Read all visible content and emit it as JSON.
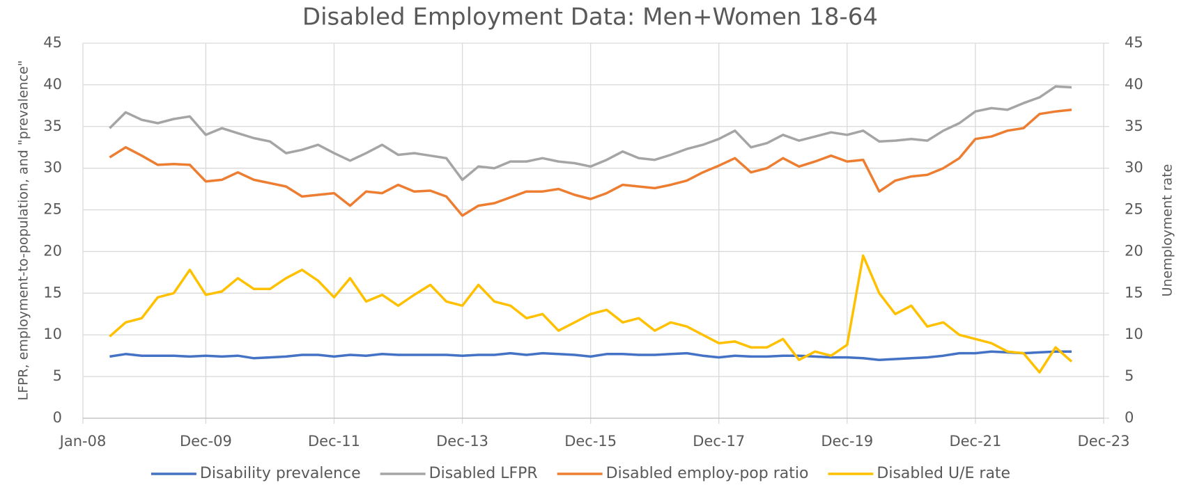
{
  "chart_data": {
    "type": "line",
    "title": "Disabled Employment Data: Men+Women 18-64",
    "y_label": "LFPR, employment-to-population, and \"prevalence\"",
    "y2_label": "Unemployment rate",
    "x": [
      "2008-06",
      "2008-09",
      "2008-12",
      "2009-03",
      "2009-06",
      "2009-09",
      "2009-12",
      "2010-03",
      "2010-06",
      "2010-09",
      "2010-12",
      "2011-03",
      "2011-06",
      "2011-09",
      "2011-12",
      "2012-03",
      "2012-06",
      "2012-09",
      "2012-12",
      "2013-03",
      "2013-06",
      "2013-09",
      "2013-12",
      "2014-03",
      "2014-06",
      "2014-09",
      "2014-12",
      "2015-03",
      "2015-06",
      "2015-09",
      "2015-12",
      "2016-03",
      "2016-06",
      "2016-09",
      "2016-12",
      "2017-03",
      "2017-06",
      "2017-09",
      "2017-12",
      "2018-03",
      "2018-06",
      "2018-09",
      "2018-12",
      "2019-03",
      "2019-06",
      "2019-09",
      "2019-12",
      "2020-03",
      "2020-06",
      "2020-09",
      "2020-12",
      "2021-03",
      "2021-06",
      "2021-09",
      "2021-12",
      "2022-03",
      "2022-06",
      "2022-09",
      "2022-12",
      "2023-03",
      "2023-06"
    ],
    "series": [
      {
        "name": "Disability prevalence",
        "color": "#4472c4",
        "values": [
          7.4,
          7.7,
          7.5,
          7.5,
          7.5,
          7.4,
          7.5,
          7.4,
          7.5,
          7.2,
          7.3,
          7.4,
          7.6,
          7.6,
          7.4,
          7.6,
          7.5,
          7.7,
          7.6,
          7.6,
          7.6,
          7.6,
          7.5,
          7.6,
          7.6,
          7.8,
          7.6,
          7.8,
          7.7,
          7.6,
          7.4,
          7.7,
          7.7,
          7.6,
          7.6,
          7.7,
          7.8,
          7.5,
          7.3,
          7.5,
          7.4,
          7.4,
          7.5,
          7.5,
          7.4,
          7.3,
          7.3,
          7.2,
          7.0,
          7.1,
          7.2,
          7.3,
          7.5,
          7.8,
          7.8,
          8.0,
          7.9,
          7.8,
          7.9,
          8.0,
          8.0
        ]
      },
      {
        "name": "Disabled LFPR",
        "color": "#a5a5a5",
        "values": [
          34.8,
          36.7,
          35.8,
          35.4,
          35.9,
          36.2,
          34.0,
          34.8,
          34.2,
          33.6,
          33.2,
          31.8,
          32.2,
          32.8,
          31.8,
          30.9,
          31.8,
          32.8,
          31.6,
          31.8,
          31.5,
          31.2,
          28.6,
          30.2,
          30.0,
          30.8,
          30.8,
          31.2,
          30.8,
          30.6,
          30.2,
          31.0,
          32.0,
          31.2,
          31.0,
          31.6,
          32.3,
          32.8,
          33.5,
          34.5,
          32.5,
          33.0,
          34.0,
          33.3,
          33.8,
          34.3,
          34.0,
          34.5,
          33.2,
          33.3,
          33.5,
          33.3,
          34.5,
          35.4,
          36.8,
          37.2,
          37.0,
          37.8,
          38.5,
          39.8,
          39.7
        ]
      },
      {
        "name": "Disabled employ-pop ratio",
        "color": "#ed7d31",
        "values": [
          31.3,
          32.5,
          31.5,
          30.4,
          30.5,
          30.4,
          28.4,
          28.6,
          29.5,
          28.6,
          28.2,
          27.8,
          26.6,
          26.8,
          27.0,
          25.5,
          27.2,
          27.0,
          28.0,
          27.2,
          27.3,
          26.6,
          24.3,
          25.5,
          25.8,
          26.5,
          27.2,
          27.2,
          27.5,
          26.8,
          26.3,
          27.0,
          28.0,
          27.8,
          27.6,
          28.0,
          28.5,
          29.5,
          30.3,
          31.2,
          29.5,
          30.0,
          31.2,
          30.2,
          30.8,
          31.5,
          30.8,
          31.0,
          27.2,
          28.5,
          29.0,
          29.2,
          30.0,
          31.2,
          33.5,
          33.8,
          34.5,
          34.8,
          36.5,
          36.8,
          37.0
        ]
      },
      {
        "name": "Disabled U/E rate",
        "color": "#ffc000",
        "axis": "y2",
        "values": [
          9.8,
          11.5,
          12.0,
          14.5,
          15.0,
          17.8,
          14.8,
          15.2,
          16.8,
          15.5,
          15.5,
          16.8,
          17.8,
          16.5,
          14.5,
          16.8,
          14.0,
          14.8,
          13.5,
          14.8,
          16.0,
          14.0,
          13.5,
          16.0,
          14.0,
          13.5,
          12.0,
          12.5,
          10.5,
          11.5,
          12.5,
          13.0,
          11.5,
          12.0,
          10.5,
          11.5,
          11.0,
          10.0,
          9.0,
          9.2,
          8.5,
          8.5,
          9.5,
          7.0,
          8.0,
          7.5,
          8.8,
          19.5,
          15.0,
          12.5,
          13.5,
          11.0,
          11.5,
          10.0,
          9.5,
          9.0,
          8.0,
          7.8,
          5.5,
          8.5,
          6.8
        ]
      }
    ],
    "xlim": [
      "2008-01",
      "2023-12"
    ],
    "xticks": [
      {
        "value": "2008-01",
        "label": "Jan-08"
      },
      {
        "value": "2009-12",
        "label": "Dec-09"
      },
      {
        "value": "2011-12",
        "label": "Dec-11"
      },
      {
        "value": "2013-12",
        "label": "Dec-13"
      },
      {
        "value": "2015-12",
        "label": "Dec-15"
      },
      {
        "value": "2017-12",
        "label": "Dec-17"
      },
      {
        "value": "2019-12",
        "label": "Dec-19"
      },
      {
        "value": "2021-12",
        "label": "Dec-21"
      },
      {
        "value": "2023-12",
        "label": "Dec-23"
      }
    ],
    "ylim": [
      0,
      45
    ],
    "yticks": [
      0,
      5,
      10,
      15,
      20,
      25,
      30,
      35,
      40,
      45
    ],
    "y2lim": [
      0,
      45
    ],
    "y2ticks": [
      0,
      5,
      10,
      15,
      20,
      25,
      30,
      35,
      40,
      45
    ],
    "grid": true,
    "legend": "bottom"
  }
}
